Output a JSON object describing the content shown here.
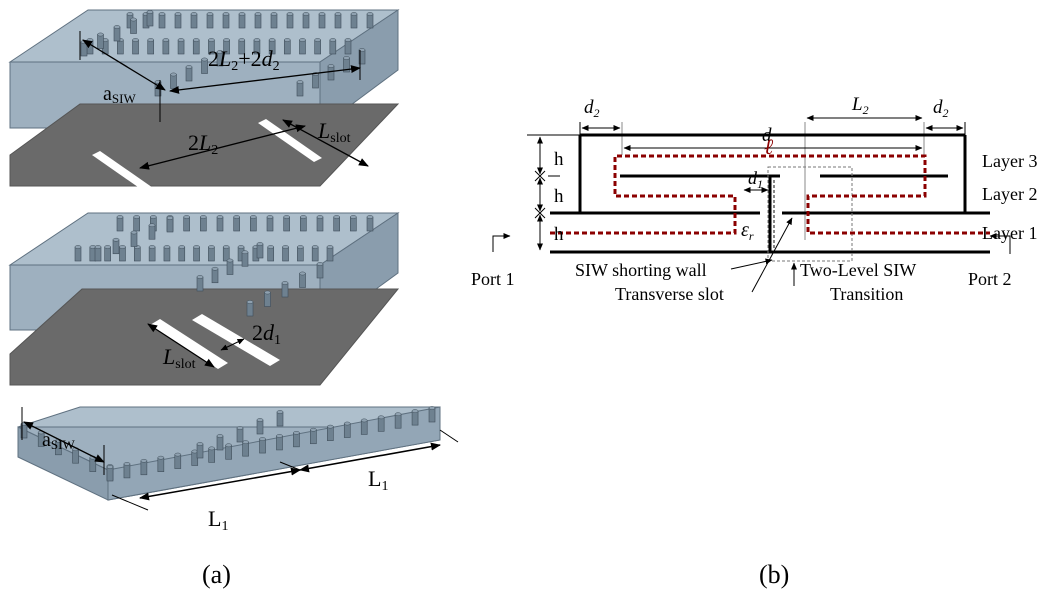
{
  "panel_a": {
    "caption": "(a)",
    "layer5": {
      "a_siw": "a",
      "a_siw_sub": "SIW",
      "span_label_prefix": "2",
      "span_L": "L",
      "span_L_sub": "2",
      "span_mid": "+2",
      "span_d": "d",
      "span_d_sub": "2"
    },
    "layer4": {
      "twoL2_prefix": "2",
      "twoL2_L": "L",
      "twoL2_sub": "2",
      "lslot": "L",
      "lslot_sub": "slot"
    },
    "layer2": {
      "lslot": "L",
      "lslot_sub": "slot",
      "twod1_prefix": "2",
      "twod1_d": "d",
      "twod1_sub": "1"
    },
    "layer1": {
      "a_siw": "a",
      "a_siw_sub": "SIW",
      "L1_left": "L",
      "L1_left_sub": "1",
      "L1_right": "L",
      "L1_right_sub": "1"
    }
  },
  "panel_b": {
    "caption": "(b)",
    "dim_d2_left": "d",
    "dim_d2_left_sub": "2",
    "dim_d": "d",
    "dim_L2": "L",
    "dim_L2_sub": "2",
    "dim_d2_right": "d",
    "dim_d2_right_sub": "2",
    "ell": "ℓ",
    "h1": "h",
    "h2": "h",
    "h3": "h",
    "d1": "d",
    "d1_sub": "1",
    "eps": "ε",
    "eps_sub": "r",
    "layer3": "Layer 3",
    "layer2": "Layer 2",
    "layer1": "Layer 1",
    "port1": "Port 1",
    "port2": "Port 2",
    "shorting_wall": "SIW shorting wall",
    "transverse_slot": "Transverse slot",
    "transition_line1": "Two-Level SIW",
    "transition_line2": "Transition"
  },
  "colors": {
    "substrate": "#9eb0bf",
    "substrate_edge": "#5f7180",
    "metal": "#696969",
    "via": "#6e8190",
    "path": "#8b0000"
  }
}
